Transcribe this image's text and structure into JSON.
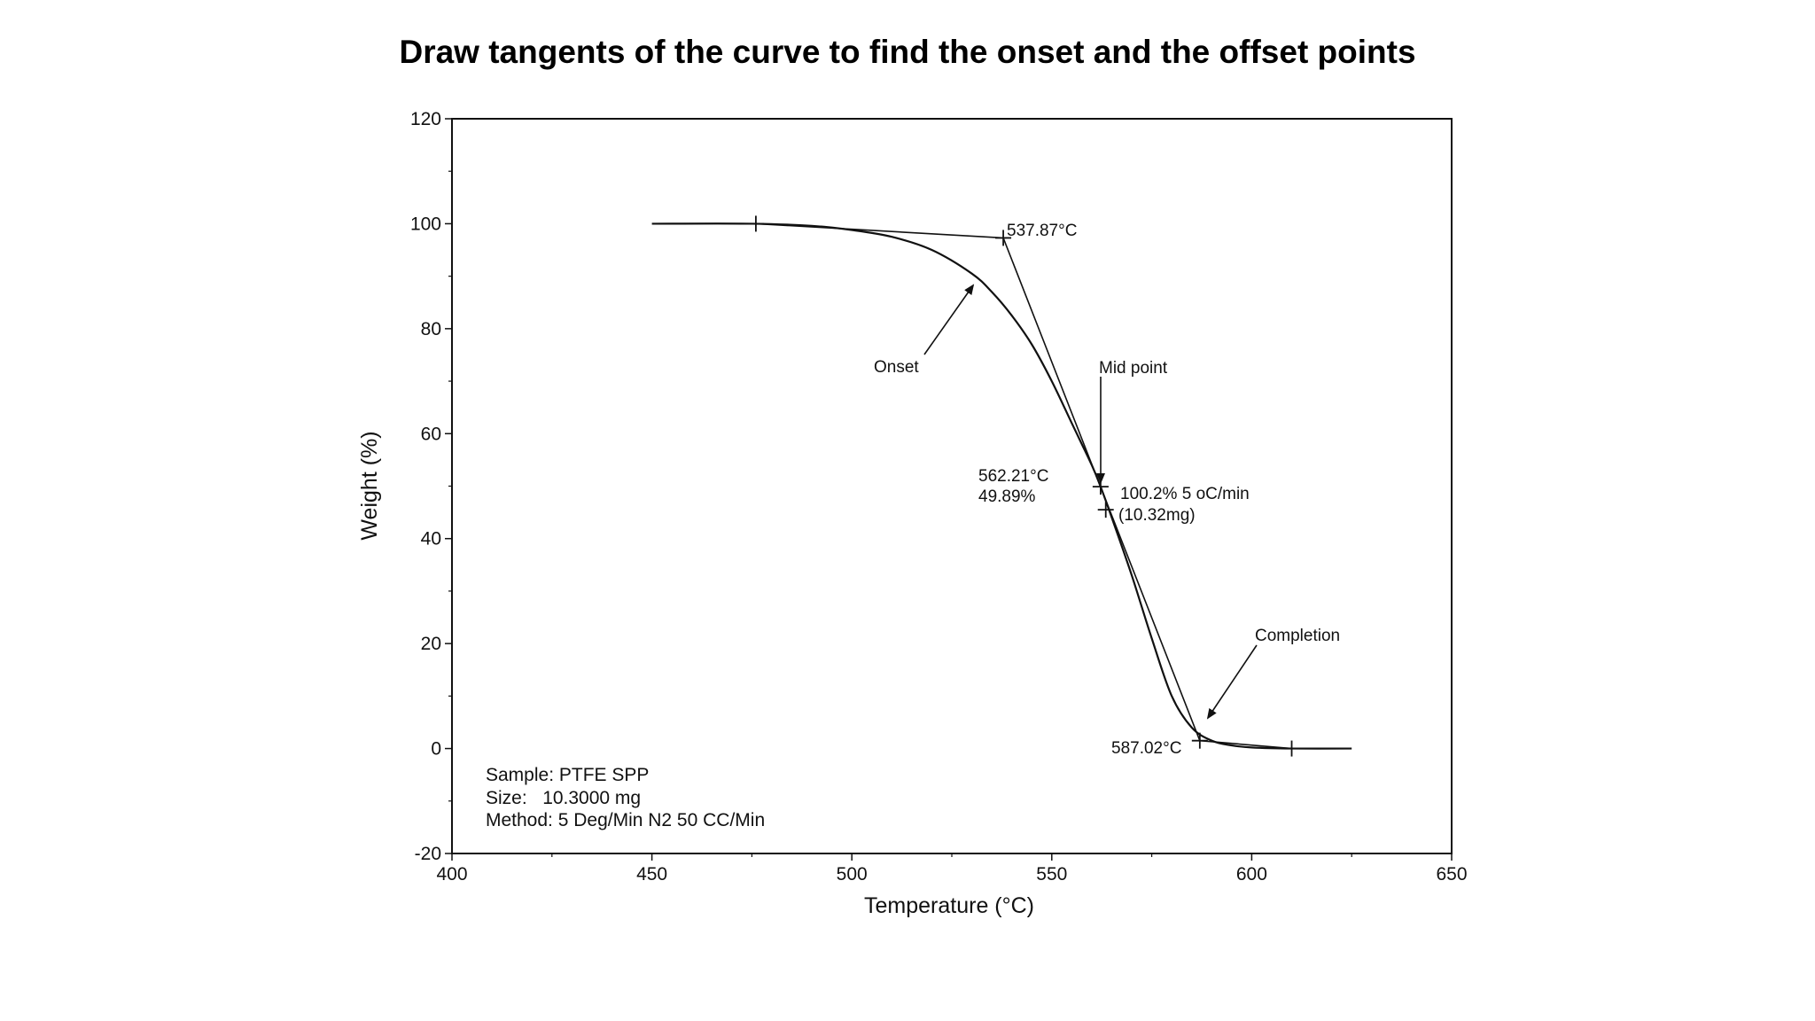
{
  "page": {
    "title": "Draw tangents of the curve to find the onset and the offset points"
  },
  "chart_data": {
    "type": "line",
    "xlabel": "Temperature (°C)",
    "ylabel": "Weight (%)",
    "xlim": [
      400,
      650
    ],
    "ylim": [
      -20,
      120
    ],
    "x_ticks": [
      400,
      450,
      500,
      550,
      600,
      650
    ],
    "y_ticks": [
      -20,
      0,
      20,
      40,
      60,
      80,
      100,
      120
    ],
    "grid": false,
    "series": [
      {
        "x": [
          450,
          475,
          490,
          500,
          510,
          520,
          530,
          535,
          540,
          545,
          550,
          555,
          560,
          562.21,
          565,
          570,
          575,
          580,
          585,
          590,
          595,
          600,
          610,
          625
        ],
        "y": [
          100,
          100,
          99.6,
          98.8,
          97.5,
          95,
          90.5,
          87,
          82.5,
          77,
          70,
          62,
          54,
          49.89,
          44,
          33,
          21,
          10,
          4,
          1.5,
          0.6,
          0.2,
          0,
          0
        ]
      }
    ],
    "tangents": [
      {
        "from": [
          476,
          100
        ],
        "to": [
          537.87,
          97.3
        ]
      },
      {
        "from": [
          537.87,
          97.3
        ],
        "to": [
          587.02,
          1.5
        ]
      },
      {
        "from": [
          587.02,
          1.5
        ],
        "to": [
          610,
          0
        ]
      }
    ],
    "markers": [
      {
        "x": 476,
        "y": 100
      },
      {
        "x": 537.87,
        "y": 97.3
      },
      {
        "x": 562.21,
        "y": 49.89
      },
      {
        "x": 563.5,
        "y": 45.5
      },
      {
        "x": 587.02,
        "y": 1.5
      },
      {
        "x": 610,
        "y": 0
      }
    ],
    "annotations": {
      "onset_temp": "537.87°C",
      "onset": "Onset",
      "mid_point": "Mid point",
      "mid_temp": "562.21°C",
      "mid_weight": "49.89%",
      "rate": "100.2% 5 oC/min",
      "mass": "(10.32mg)",
      "completion": "Completion",
      "offset_temp": "587.02°C"
    },
    "sample_info": {
      "sample": "Sample: PTFE SPP",
      "size": "Size:   10.3000 mg",
      "method": "Method: 5 Deg/Min N2 50 CC/Min"
    }
  }
}
